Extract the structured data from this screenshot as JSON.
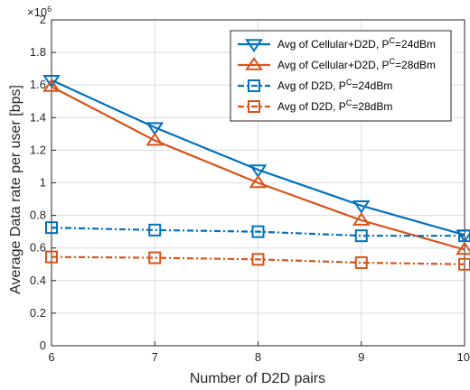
{
  "chart_data": {
    "type": "line",
    "xlabel": "Number of D2D pairs",
    "ylabel": "Average Data rate per user [bps]",
    "y_multiplier_base": "×10",
    "y_multiplier_exp": "6",
    "xlim": [
      6,
      10
    ],
    "ylim": [
      0,
      2
    ],
    "x": [
      6,
      7,
      8,
      9,
      10
    ],
    "x_ticks": [
      "6",
      "7",
      "8",
      "9",
      "10"
    ],
    "y_ticks": [
      "0",
      "0.2",
      "0.4",
      "0.6",
      "0.8",
      "1",
      "1.2",
      "1.4",
      "1.6",
      "1.8",
      "2"
    ],
    "grid": true,
    "legend_position": "top-right",
    "series": [
      {
        "name_parts": [
          "Avg of Cellular+D2D, P",
          "C",
          "=24dBm"
        ],
        "values": [
          1.63,
          1.34,
          1.08,
          0.86,
          0.68
        ],
        "color": "#0072BD",
        "line": "solid",
        "marker": "triangle-down"
      },
      {
        "name_parts": [
          "Avg of Cellular+D2D, P",
          "C",
          "=28dBm"
        ],
        "values": [
          1.59,
          1.26,
          1.0,
          0.77,
          0.59
        ],
        "color": "#D95319",
        "line": "solid",
        "marker": "triangle-up"
      },
      {
        "name_parts": [
          "Avg of D2D, P",
          "C",
          "=24dBm"
        ],
        "values": [
          0.725,
          0.71,
          0.7,
          0.675,
          0.675
        ],
        "color": "#0072BD",
        "line": "dashdot",
        "marker": "square"
      },
      {
        "name_parts": [
          "Avg of D2D, P",
          "C",
          "=28dBm"
        ],
        "values": [
          0.545,
          0.54,
          0.53,
          0.51,
          0.5
        ],
        "color": "#D95319",
        "line": "dashdot",
        "marker": "square"
      }
    ]
  }
}
